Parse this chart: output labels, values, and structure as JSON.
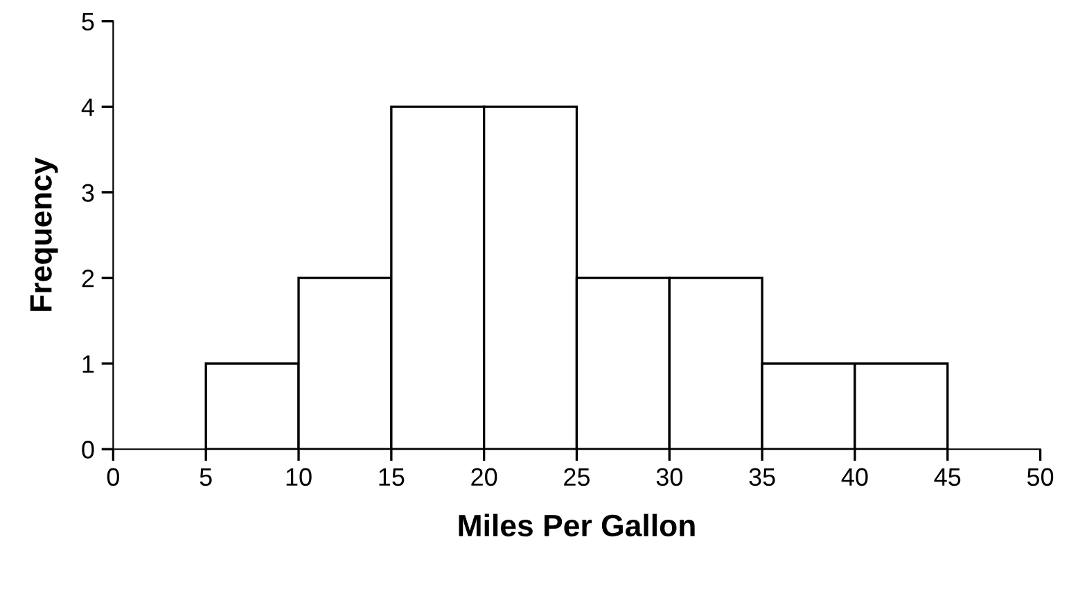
{
  "chart_data": {
    "type": "histogram",
    "xlabel": "Miles Per Gallon",
    "ylabel": "Frequency",
    "bins": [
      5,
      10,
      15,
      20,
      25,
      30,
      35,
      40,
      45
    ],
    "values": [
      1,
      2,
      4,
      4,
      2,
      2,
      1,
      1
    ],
    "color": "#ffffff",
    "xlim": [
      0,
      50
    ],
    "xticks": [
      0,
      5,
      10,
      15,
      20,
      25,
      30,
      35,
      40,
      45,
      50
    ],
    "ylim": [
      0,
      5
    ],
    "yticks": [
      0,
      1,
      2,
      3,
      4,
      5
    ],
    "grid": false
  }
}
